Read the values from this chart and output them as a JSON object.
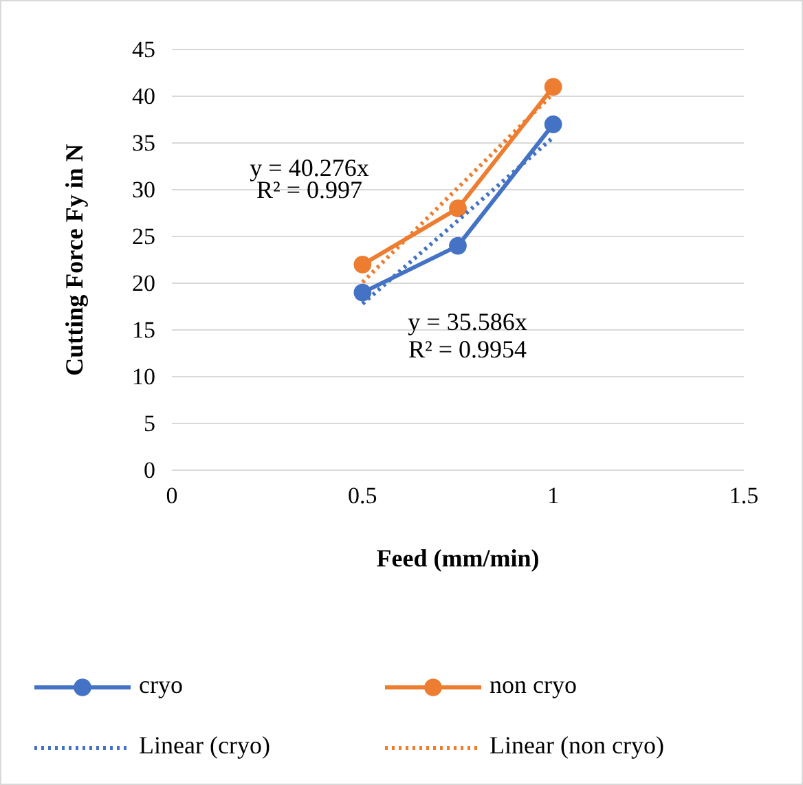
{
  "chart_data": {
    "type": "line",
    "xlabel": "Feed (mm/min)",
    "ylabel": "Cutting Force Fy in N",
    "xlim": [
      0,
      1.5
    ],
    "xticks": [
      0,
      0.5,
      1,
      1.5
    ],
    "ylim": [
      0,
      45
    ],
    "yticks": [
      0,
      5,
      10,
      15,
      20,
      25,
      30,
      35,
      40,
      45
    ],
    "grid": "y",
    "legend": "bottom",
    "marker": "circle",
    "line_style": "solid",
    "series": [
      {
        "name": "cryo",
        "color": "#4472c4",
        "x": [
          0.5,
          0.75,
          1
        ],
        "values": [
          19,
          24,
          37
        ]
      },
      {
        "name": "non cryo",
        "color": "#ed7d31",
        "x": [
          0.5,
          0.75,
          1
        ],
        "values": [
          22,
          28,
          41
        ]
      },
      {
        "name": "Linear (cryo)",
        "color": "#4472c4",
        "x": [
          0.5,
          1
        ],
        "values": [
          17.8,
          35.6
        ],
        "marker": "none",
        "line_style": "dotted"
      },
      {
        "name": "Linear (non cryo)",
        "color": "#ed7d31",
        "x": [
          0.5,
          1
        ],
        "values": [
          20.1,
          40.3
        ],
        "marker": "none",
        "line_style": "dotted"
      }
    ],
    "annotations": [
      "y = 40.276x",
      "R² = 0.997",
      "y = 35.586x",
      "R² = 0.9954"
    ]
  }
}
